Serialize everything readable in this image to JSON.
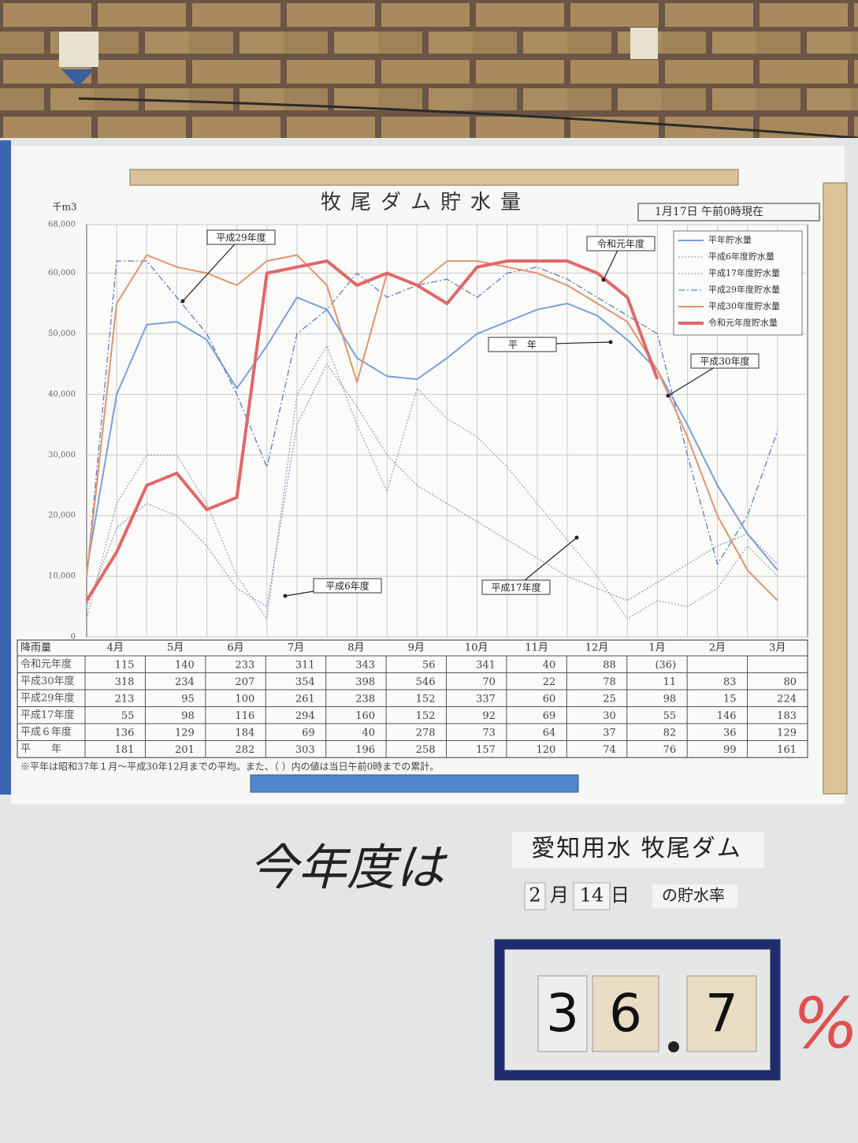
{
  "chart_data": {
    "type": "line",
    "title": "牧尾ダム貯水量",
    "subtitle": "1月17日 午前0時現在",
    "y_label": "千m3",
    "categories": [
      "4月",
      null,
      "5月",
      null,
      "6月",
      null,
      "7月",
      null,
      "8月",
      null,
      "9月",
      null,
      "10月",
      null,
      "11月",
      null,
      "12月",
      null,
      "1月",
      null,
      "2月",
      null,
      "3月",
      null
    ],
    "series": [
      {
        "name": "平年貯水量",
        "color": "#7a9fd8",
        "style": "solid",
        "values": [
          11000,
          40000,
          51500,
          52000,
          49000,
          41000,
          48000,
          56000,
          54000,
          46000,
          43000,
          42500,
          46000,
          50000,
          52000,
          54000,
          55000,
          53000,
          49000,
          44000,
          35000,
          25000,
          17000,
          11000
        ]
      },
      {
        "name": "平成6年度貯水量",
        "color": "#a0a6ae",
        "style": "dotted",
        "values": [
          3000,
          22000,
          30000,
          30000,
          22000,
          10000,
          3000,
          40000,
          48000,
          35000,
          24000,
          41000,
          36000,
          33000,
          28000,
          22000,
          16000,
          10000,
          3000,
          6000,
          5000,
          8000,
          15000,
          10000
        ]
      },
      {
        "name": "平成17年度貯水量",
        "color": "#8c9cc4",
        "style": "dotted",
        "values": [
          5000,
          18000,
          22000,
          20000,
          15000,
          8000,
          5000,
          35000,
          45000,
          38000,
          30000,
          25000,
          22000,
          19000,
          16000,
          13000,
          10000,
          8000,
          6000,
          9000,
          12000,
          15000,
          17000,
          12000
        ]
      },
      {
        "name": "平成29年度貯水量",
        "color": "#5a7fc0",
        "style": "dashdot",
        "values": [
          10000,
          62000,
          62000,
          56000,
          50000,
          40000,
          28000,
          50000,
          54000,
          60000,
          56000,
          58000,
          59000,
          56000,
          60000,
          61000,
          59000,
          56000,
          53000,
          50000,
          30000,
          12000,
          20000,
          34000
        ]
      },
      {
        "name": "平成30年度貯水量",
        "color": "#e0936c",
        "style": "solid",
        "values": [
          10000,
          55000,
          63000,
          61000,
          60000,
          58000,
          62000,
          63000,
          58000,
          42000,
          60000,
          58000,
          62000,
          62000,
          61000,
          60000,
          58000,
          55000,
          52000,
          44000,
          33000,
          20000,
          11000,
          6000
        ]
      },
      {
        "name": "令和元年度貯水量",
        "color": "#e06868",
        "style": "thick",
        "values": [
          6000,
          14000,
          25000,
          27000,
          21000,
          23000,
          60000,
          61000,
          62000,
          58000,
          60000,
          58000,
          55000,
          61000,
          62000,
          62000,
          62000,
          60000,
          56000,
          42500,
          null,
          null,
          null,
          null
        ]
      }
    ],
    "annotations": [
      "平成29年度",
      "令和元年度",
      "平　年",
      "平成30年度",
      "平成6年度",
      "平成17年度"
    ],
    "ylim": [
      0,
      68000
    ],
    "yticks": [
      0,
      {
        "value": 10000,
        "label": "10,000"
      },
      {
        "value": 20000,
        "label": "20,000"
      },
      {
        "value": 30000,
        "label": "30,000"
      },
      {
        "value": 40000,
        "label": "40,000"
      },
      {
        "value": 50000,
        "label": "50,000"
      },
      {
        "value": 60000,
        "label": "60,000"
      },
      {
        "value": 68000,
        "label": "68,000"
      }
    ],
    "grid": true,
    "legend": "upper right"
  },
  "rainfall_table": {
    "label": "降雨量",
    "rows": [
      {
        "name": "令和元年度",
        "values": [
          115,
          140,
          233,
          311,
          343,
          56,
          341,
          40,
          88,
          "(36)",
          null,
          null
        ]
      },
      {
        "name": "平成30年度",
        "values": [
          318,
          234,
          207,
          354,
          398,
          546,
          70,
          22,
          78,
          11,
          83,
          80
        ]
      },
      {
        "name": "平成29年度",
        "values": [
          213,
          95,
          100,
          261,
          238,
          152,
          337,
          60,
          25,
          98,
          15,
          224
        ]
      },
      {
        "name": "平成17年度",
        "values": [
          55,
          98,
          116,
          294,
          160,
          152,
          92,
          69,
          30,
          55,
          146,
          183
        ]
      },
      {
        "name": "平成６年度",
        "values": [
          136,
          129,
          184,
          69,
          40,
          278,
          73,
          64,
          37,
          82,
          36,
          129
        ]
      },
      {
        "name": "平　　年",
        "values": [
          181,
          201,
          282,
          303,
          196,
          258,
          157,
          120,
          74,
          76,
          99,
          161
        ]
      }
    ],
    "note": "※平年は昭和37年１月～平成30年12月までの平均。また、（ ）内の値は当日午前0時までの累計。"
  },
  "board": {
    "heading": "今年度は",
    "sign": "愛知用水 牧尾ダム",
    "month": "2",
    "month_unit": "月",
    "day": "14",
    "day_unit": "日",
    "rate_label": "の貯水率",
    "digits": [
      "3",
      "6",
      "7"
    ],
    "percent": "%"
  }
}
